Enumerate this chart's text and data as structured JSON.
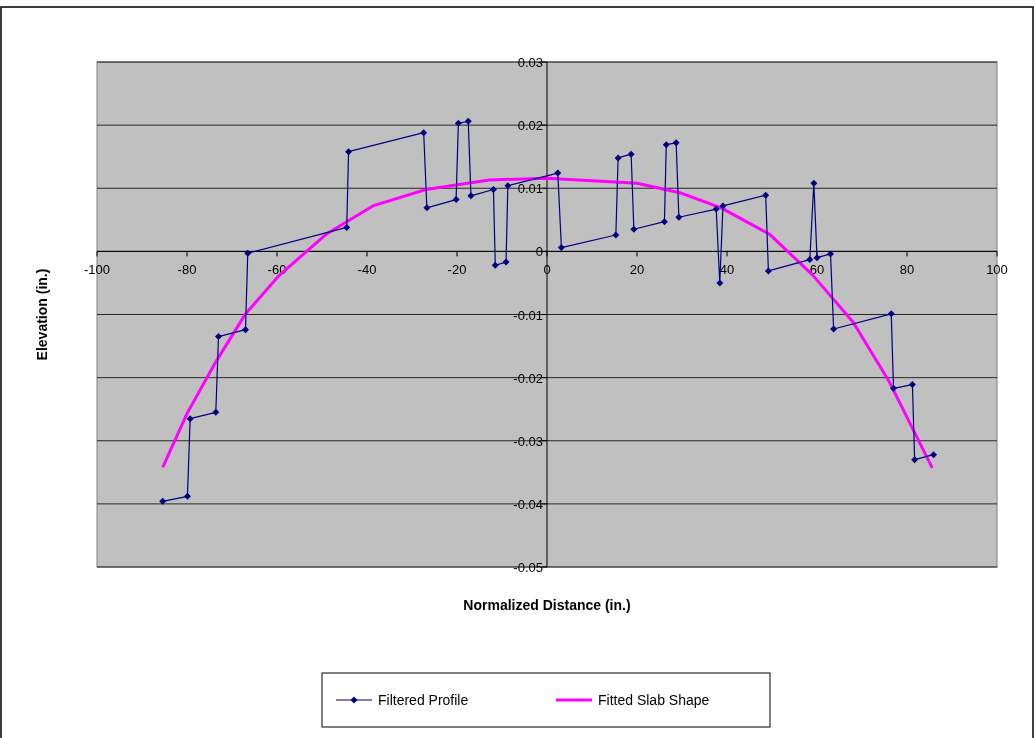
{
  "chart_data": {
    "type": "line",
    "xlabel": "Normalized Distance (in.)",
    "ylabel": "Elevation (in.)",
    "xlim": [
      -100,
      100
    ],
    "xticks": [
      -100,
      -80,
      -60,
      -40,
      -20,
      0,
      20,
      40,
      60,
      80,
      100
    ],
    "ylim": [
      -0.05,
      0.03
    ],
    "yticks": [
      -0.05,
      -0.04,
      -0.03,
      -0.02,
      -0.01,
      0,
      0.01,
      0.02,
      0.03
    ],
    "grid": "y",
    "legend": "bottom",
    "series": [
      {
        "name": "Filtered Profile",
        "color": "#000080",
        "marker": "diamond",
        "line_style": "solid",
        "x": [
          -85.4,
          -79.9,
          -79.3,
          -73.6,
          -73,
          -67,
          -66.5,
          -44.5,
          -44.1,
          -27.4,
          -26.7,
          -20.2,
          -19.7,
          -17.5,
          -16.9,
          -11.9,
          -11.5,
          -9.1,
          -8.7,
          2.4,
          3.2,
          15.3,
          15.8,
          18.7,
          19.3,
          26.1,
          26.5,
          28.7,
          29.3,
          37.6,
          38.4,
          39.1,
          48.6,
          49.2,
          58.4,
          59.3,
          60,
          63,
          63.7,
          76.5,
          77,
          81.2,
          81.7,
          85.9
        ],
        "values": [
          -0.0396,
          -0.0388,
          -0.0265,
          -0.0255,
          -0.0135,
          -0.0124,
          -0.0003,
          0.0038,
          0.0158,
          0.0188,
          0.0069,
          0.0082,
          0.0203,
          0.0206,
          0.0088,
          0.0098,
          -0.0022,
          -0.0017,
          0.0104,
          0.0124,
          0.0006,
          0.0026,
          0.0148,
          0.0154,
          0.0035,
          0.0047,
          0.0169,
          0.0172,
          0.0054,
          0.0067,
          -0.005,
          0.0072,
          0.0089,
          -0.0031,
          -0.0013,
          0.0108,
          -0.001,
          -0.0004,
          -0.0123,
          -0.0099,
          -0.0217,
          -0.0211,
          -0.033,
          -0.0322
        ]
      },
      {
        "name": "Fitted Slab Shape",
        "color": "#ff00ff",
        "marker": "none",
        "line_style": "solid",
        "x": [
          -85.4,
          -80,
          -73.6,
          -67,
          -59.5,
          -49.1,
          -38.7,
          -26.9,
          -12.8,
          0,
          20,
          29.5,
          38.7,
          49.5,
          59.1,
          68,
          76.1,
          85.6
        ],
        "values": [
          -0.0342,
          -0.0257,
          -0.0175,
          -0.0099,
          -0.0038,
          0.0027,
          0.0072,
          0.0098,
          0.0113,
          0.0116,
          0.0108,
          0.0093,
          0.0069,
          0.0027,
          -0.0038,
          -0.0112,
          -0.0207,
          -0.0343
        ]
      }
    ]
  }
}
